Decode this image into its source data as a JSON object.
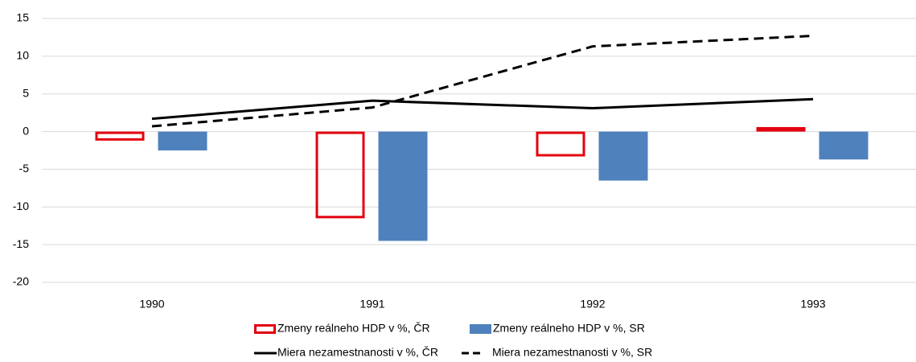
{
  "chart_data": {
    "type": "bar",
    "categories": [
      "1990",
      "1991",
      "1992",
      "1993"
    ],
    "ylim": [
      -20,
      15
    ],
    "yticks": [
      -20,
      -15,
      -10,
      -5,
      0,
      5,
      10,
      15
    ],
    "grid": true,
    "series": [
      {
        "name": "Zmeny reálneho HDP v %, ČR",
        "type": "bar",
        "color": "#e3000f",
        "filled": false,
        "values": [
          -1.2,
          -11.5,
          -3.3,
          0.6
        ]
      },
      {
        "name": "Zmeny reálneho HDP v %, SR",
        "type": "bar",
        "color": "#4f81bd",
        "filled": true,
        "values": [
          -2.5,
          -14.5,
          -6.5,
          -3.7
        ]
      },
      {
        "name": "Miera nezamestnanosti v %, ČR",
        "type": "line",
        "color": "#000000",
        "dashed": false,
        "values": [
          1.7,
          4.1,
          3.1,
          4.3
        ]
      },
      {
        "name": "Miera nezamestnanosti v %, SR",
        "type": "line",
        "color": "#000000",
        "dashed": true,
        "values": [
          0.7,
          3.2,
          11.3,
          12.7
        ]
      }
    ]
  }
}
